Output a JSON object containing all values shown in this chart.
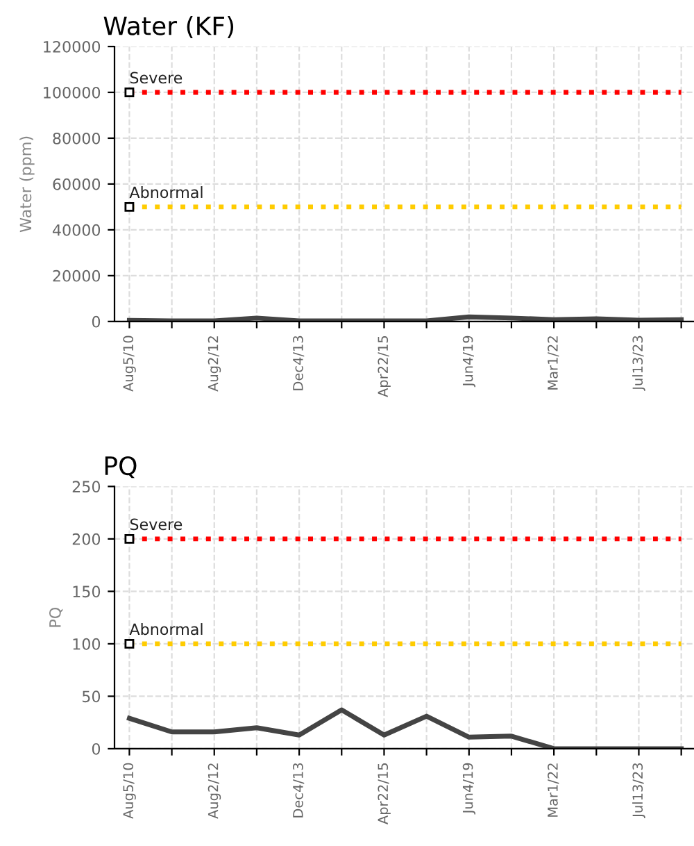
{
  "chart_data": [
    {
      "type": "line",
      "title": "Water (KF)",
      "ylabel": "Water (ppm)",
      "categories": [
        "Aug5/10",
        null,
        "Aug2/12",
        null,
        "Dec4/13",
        null,
        "Apr22/15",
        null,
        "Jun4/19",
        null,
        "Mar1/22",
        null,
        "Jul13/23",
        null
      ],
      "series": [
        {
          "color": "#444444",
          "values": [
            500,
            300,
            300,
            1500,
            300,
            300,
            300,
            300,
            2000,
            1500,
            800,
            1200,
            600,
            800
          ]
        }
      ],
      "ylim": [
        0,
        120000
      ],
      "yticks": [
        0,
        20000,
        40000,
        60000,
        80000,
        100000,
        120000
      ],
      "ref_lines": [
        {
          "axis": "y",
          "value": 100000,
          "label": "Severe",
          "color": "#ff0000",
          "line_style": "dotted"
        },
        {
          "axis": "y",
          "value": 50000,
          "label": "Abnormal",
          "color": "#ffcc00",
          "line_style": "dotted"
        }
      ],
      "grid": true,
      "marker": "none",
      "line_style": "solid"
    },
    {
      "type": "line",
      "title": "PQ",
      "ylabel": "PQ",
      "categories": [
        "Aug5/10",
        null,
        "Aug2/12",
        null,
        "Dec4/13",
        null,
        "Apr22/15",
        null,
        "Jun4/19",
        null,
        "Mar1/22",
        null,
        "Jul13/23",
        null
      ],
      "series": [
        {
          "color": "#444444",
          "values": [
            29,
            16,
            16,
            20,
            13,
            37,
            13,
            31,
            11,
            12,
            0,
            0,
            0,
            0
          ]
        }
      ],
      "ylim": [
        0,
        250
      ],
      "yticks": [
        0,
        50,
        100,
        150,
        200,
        250
      ],
      "ref_lines": [
        {
          "axis": "y",
          "value": 200,
          "label": "Severe",
          "color": "#ff0000",
          "line_style": "dotted"
        },
        {
          "axis": "y",
          "value": 100,
          "label": "Abnormal",
          "color": "#ffcc00",
          "line_style": "dotted"
        }
      ],
      "grid": true,
      "marker": "none",
      "line_style": "solid"
    }
  ]
}
